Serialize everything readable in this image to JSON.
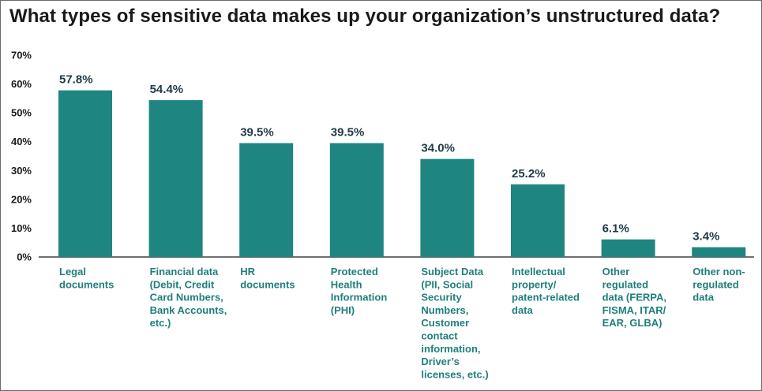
{
  "title": "What types of sensitive data makes up your organization’s unstructured data?",
  "chart_data": {
    "type": "bar",
    "title": "What types of sensitive data makes up your organization’s unstructured data?",
    "xlabel": "",
    "ylabel": "",
    "ylim": [
      0,
      70
    ],
    "yticks": [
      "0%",
      "10%",
      "20%",
      "30%",
      "40%",
      "50%",
      "60%",
      "70%"
    ],
    "grid": false,
    "bar_color": "#1f8580",
    "categories": [
      [
        "Legal",
        "documents"
      ],
      [
        "Financial data",
        "(Debit, Credit",
        "Card Numbers,",
        "Bank Accounts,",
        "etc.)"
      ],
      [
        "HR",
        "documents"
      ],
      [
        "Protected",
        "Health",
        "Information",
        "(PHI)"
      ],
      [
        "Subject Data",
        "(PII, Social",
        "Security",
        "Numbers,",
        "Customer",
        "contact",
        "information,",
        "Driver’s",
        "licenses, etc.)"
      ],
      [
        "Intellectual",
        "property/",
        "patent-related",
        "data"
      ],
      [
        "Other",
        "regulated",
        "data (FERPA,",
        "FISMA, ITAR/",
        "EAR, GLBA)"
      ],
      [
        "Other non-",
        "regulated",
        "data"
      ]
    ],
    "values": [
      57.8,
      54.4,
      39.5,
      39.5,
      34.0,
      25.2,
      6.1,
      3.4
    ],
    "value_labels": [
      "57.8%",
      "54.4%",
      "39.5%",
      "39.5%",
      "34.0%",
      "25.2%",
      "6.1%",
      "3.4%"
    ]
  }
}
